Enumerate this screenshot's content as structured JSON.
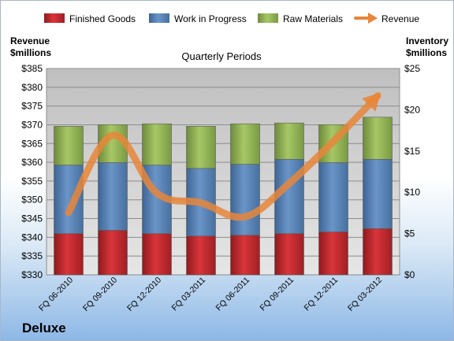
{
  "company": "Deluxe",
  "chart_data": {
    "type": "bar",
    "title": "Quarterly Periods",
    "left_axis_label_line1": "Revenue",
    "left_axis_label_line2": "$millions",
    "right_axis_label_line1": "Inventory",
    "right_axis_label_line2": "$millions",
    "categories": [
      "FQ 06-2010",
      "FQ 09-2010",
      "FQ 12-2010",
      "FQ 03-2011",
      "FQ 06-2011",
      "FQ 09-2011",
      "FQ 12-2011",
      "FQ 03-2012"
    ],
    "stacked_series": [
      {
        "name": "Finished Goods",
        "color": "#c0272d",
        "values": [
          5.0,
          5.4,
          5.0,
          4.7,
          4.8,
          5.0,
          5.2,
          5.6
        ]
      },
      {
        "name": "Work in Progress",
        "color": "#4f81bd",
        "values": [
          8.3,
          8.2,
          8.3,
          8.2,
          8.6,
          9.0,
          8.4,
          8.4
        ]
      },
      {
        "name": "Raw Materials",
        "color": "#9bbb59",
        "values": [
          4.7,
          4.6,
          5.0,
          5.1,
          4.9,
          4.4,
          4.6,
          5.1
        ]
      }
    ],
    "line_series": {
      "name": "Revenue",
      "color": "#e8863a",
      "values": [
        346.6,
        367.2,
        351.8,
        349.2,
        345.5,
        354.4,
        365.6,
        377.7
      ]
    },
    "left_ylim": [
      330,
      385
    ],
    "left_ticks": [
      330,
      335,
      340,
      345,
      350,
      355,
      360,
      365,
      370,
      375,
      380,
      385
    ],
    "left_tick_labels": [
      "$330",
      "$335",
      "$340",
      "$345",
      "$350",
      "$355",
      "$360",
      "$365",
      "$370",
      "$375",
      "$380",
      "$385"
    ],
    "right_ylim": [
      0,
      25
    ],
    "right_ticks": [
      0,
      5,
      10,
      15,
      20,
      25
    ],
    "right_tick_labels": [
      "$0",
      "$5",
      "$10",
      "$15",
      "$20",
      "$25"
    ],
    "legend_position": "top",
    "grid": true
  }
}
